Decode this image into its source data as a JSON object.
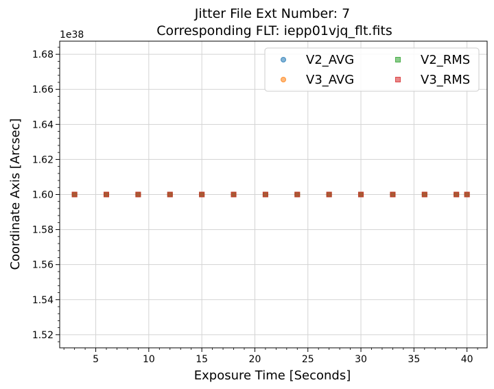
{
  "chart_data": {
    "type": "scatter",
    "title_line1": "Jitter File Ext Number: 7",
    "title_line2": "Corresponding FLT: iepp01vjq_flt.fits",
    "xlabel": "Exposure Time [Seconds]",
    "ylabel": "Coordinate Axis [Arcsec]",
    "y_offset_label": "1e38",
    "xlim": [
      1.6,
      41.9
    ],
    "ylim": [
      1.5125,
      1.6875
    ],
    "x_ticks": [
      5,
      10,
      15,
      20,
      25,
      30,
      35,
      40
    ],
    "x_tick_labels": [
      "5",
      "10",
      "15",
      "20",
      "25",
      "30",
      "35",
      "40"
    ],
    "y_ticks": [
      1.52,
      1.54,
      1.56,
      1.58,
      1.6,
      1.62,
      1.64,
      1.66,
      1.68
    ],
    "y_tick_labels": [
      "1.52",
      "1.54",
      "1.56",
      "1.58",
      "1.60",
      "1.62",
      "1.64",
      "1.66",
      "1.68"
    ],
    "grid": true,
    "legend_position": "top-right",
    "x": [
      3,
      6,
      9,
      12,
      15,
      18,
      21,
      24,
      27,
      30,
      33,
      36,
      39,
      40
    ],
    "series": [
      {
        "name": "V2_AVG",
        "marker": "circle",
        "color": "#1f77b4",
        "values": [
          1.6,
          1.6,
          1.6,
          1.6,
          1.6,
          1.6,
          1.6,
          1.6,
          1.6,
          1.6,
          1.6,
          1.6,
          1.6,
          1.6
        ]
      },
      {
        "name": "V3_AVG",
        "marker": "circle",
        "color": "#ff7f0e",
        "values": [
          1.6,
          1.6,
          1.6,
          1.6,
          1.6,
          1.6,
          1.6,
          1.6,
          1.6,
          1.6,
          1.6,
          1.6,
          1.6,
          1.6
        ]
      },
      {
        "name": "V2_RMS",
        "marker": "square",
        "color": "#2ca02c",
        "values": [
          1.6,
          1.6,
          1.6,
          1.6,
          1.6,
          1.6,
          1.6,
          1.6,
          1.6,
          1.6,
          1.6,
          1.6,
          1.6,
          1.6
        ]
      },
      {
        "name": "V3_RMS",
        "marker": "square",
        "color": "#d62728",
        "values": [
          1.6,
          1.6,
          1.6,
          1.6,
          1.6,
          1.6,
          1.6,
          1.6,
          1.6,
          1.6,
          1.6,
          1.6,
          1.6,
          1.6
        ]
      }
    ]
  }
}
